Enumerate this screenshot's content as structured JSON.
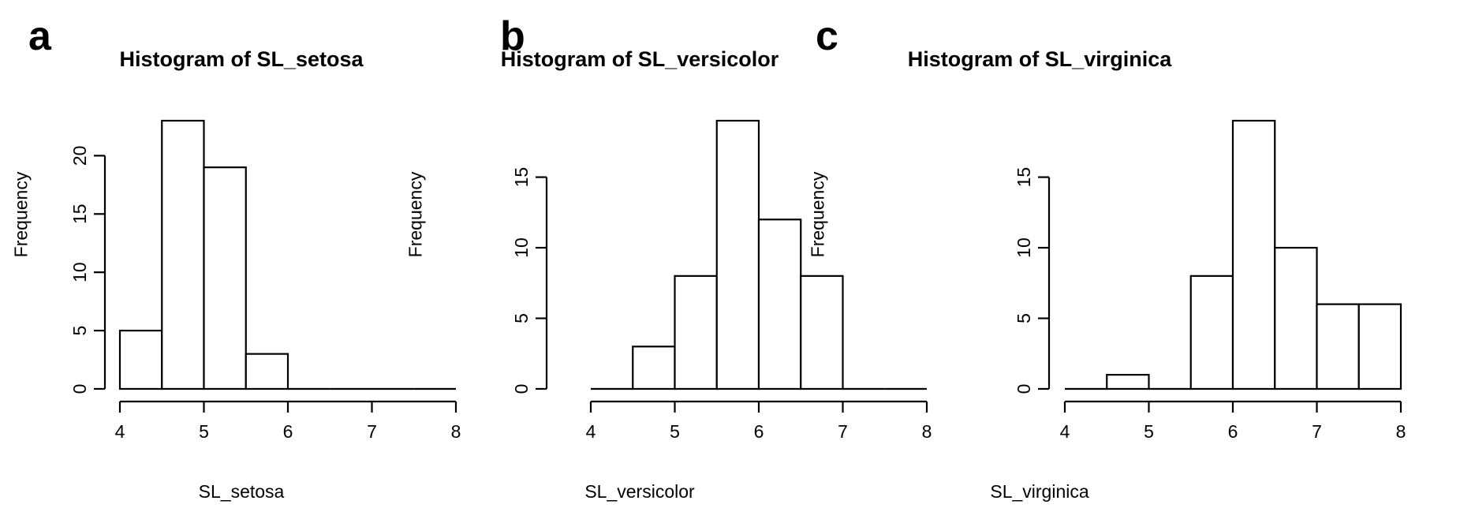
{
  "chart_data": [
    {
      "type": "bar",
      "panel_letter": "a",
      "title": "Histogram of SL_setosa",
      "xlabel": "SL_setosa",
      "ylabel": "Frequency",
      "bins": [
        [
          4.0,
          4.5
        ],
        [
          4.5,
          5.0
        ],
        [
          5.0,
          5.5
        ],
        [
          5.5,
          6.0
        ],
        [
          6.0,
          6.5
        ],
        [
          6.5,
          7.0
        ],
        [
          7.0,
          7.5
        ],
        [
          7.5,
          8.0
        ]
      ],
      "values": [
        5,
        23,
        19,
        3,
        0,
        0,
        0,
        0
      ],
      "xlim": [
        4,
        8
      ],
      "ylim": [
        0,
        23
      ],
      "x_ticks": [
        4,
        5,
        6,
        7,
        8
      ],
      "y_ticks": [
        0,
        5,
        10,
        15,
        20
      ],
      "grid": false
    },
    {
      "type": "bar",
      "panel_letter": "b",
      "title": "Histogram of SL_versicolor",
      "xlabel": "SL_versicolor",
      "ylabel": "Frequency",
      "bins": [
        [
          4.0,
          4.5
        ],
        [
          4.5,
          5.0
        ],
        [
          5.0,
          5.5
        ],
        [
          5.5,
          6.0
        ],
        [
          6.0,
          6.5
        ],
        [
          6.5,
          7.0
        ],
        [
          7.0,
          7.5
        ],
        [
          7.5,
          8.0
        ]
      ],
      "values": [
        0,
        3,
        8,
        19,
        12,
        8,
        0,
        0
      ],
      "xlim": [
        4,
        8
      ],
      "ylim": [
        0,
        19
      ],
      "x_ticks": [
        4,
        5,
        6,
        7,
        8
      ],
      "y_ticks": [
        0,
        5,
        10,
        15
      ],
      "grid": false
    },
    {
      "type": "bar",
      "panel_letter": "c",
      "title": "Histogram of SL_virginica",
      "xlabel": "SL_virginica",
      "ylabel": "Frequency",
      "bins": [
        [
          4.0,
          4.5
        ],
        [
          4.5,
          5.0
        ],
        [
          5.0,
          5.5
        ],
        [
          5.5,
          6.0
        ],
        [
          6.0,
          6.5
        ],
        [
          6.5,
          7.0
        ],
        [
          7.0,
          7.5
        ],
        [
          7.5,
          8.0
        ]
      ],
      "values": [
        0,
        1,
        0,
        8,
        19,
        10,
        6,
        6
      ],
      "xlim": [
        4,
        8
      ],
      "ylim": [
        0,
        19
      ],
      "x_ticks": [
        4,
        5,
        6,
        7,
        8
      ],
      "y_ticks": [
        0,
        5,
        10,
        15
      ],
      "grid": false
    }
  ]
}
